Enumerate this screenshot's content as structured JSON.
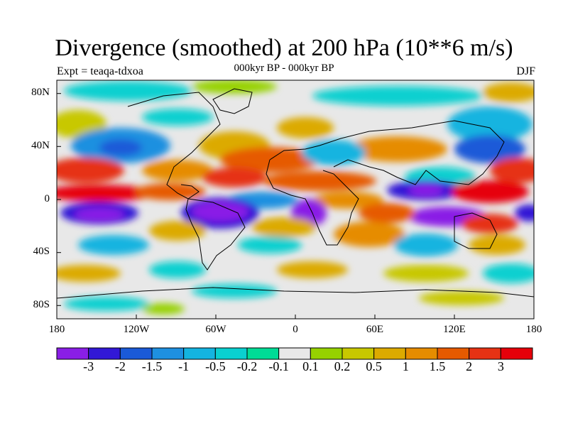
{
  "title": "Divergence (smoothed) at 200 hPa (10**6 m/s)",
  "subtitle": "000kyr BP - 000kyr BP",
  "experiment": "Expt = teaqa-tdxoa",
  "season": "DJF",
  "lat_labels": [
    "80N",
    "40N",
    "0",
    "40S",
    "80S"
  ],
  "lon_labels": [
    "180",
    "120W",
    "60W",
    "0",
    "60E",
    "120E",
    "180"
  ],
  "colorbar": {
    "colors": [
      "#8a1ee6",
      "#3218d6",
      "#1a5ad8",
      "#1e90e0",
      "#14b4e0",
      "#0ad0d0",
      "#00dc96",
      "#e8e8e8",
      "#96d200",
      "#c8c800",
      "#dcaa00",
      "#e68c00",
      "#e65a00",
      "#e63214",
      "#e6000a"
    ],
    "labels": [
      "-3",
      "-2",
      "-1.5",
      "-1",
      "-0.5",
      "-0.2",
      "-0.1",
      "0.1",
      "0.2",
      "0.5",
      "1",
      "1.5",
      "2",
      "3"
    ]
  }
}
